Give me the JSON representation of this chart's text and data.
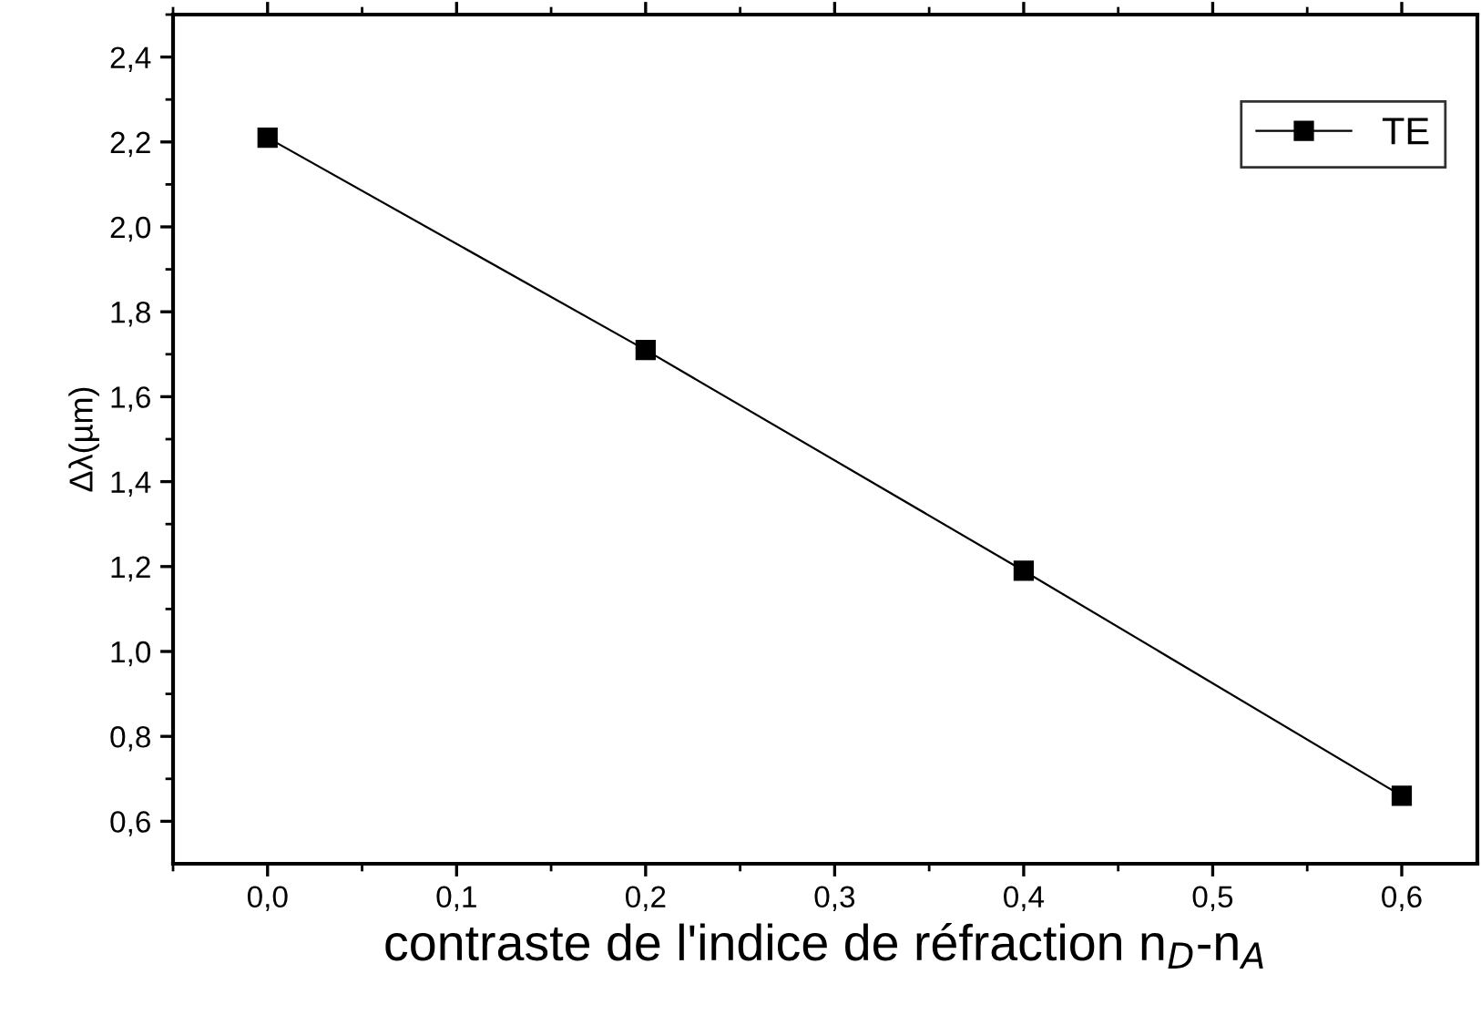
{
  "chart_data": {
    "type": "line",
    "xlabel": "contraste de l'indice de réfraction n$_{D}$-n$_{A}$",
    "ylabel": "Δλ(µm)",
    "x": [
      0.0,
      0.2,
      0.4,
      0.6
    ],
    "series": [
      {
        "name": "TE",
        "color": "#000000",
        "values": [
          2.21,
          1.71,
          1.19,
          0.66
        ]
      }
    ],
    "xlim": [
      -0.05,
      0.64
    ],
    "ylim": [
      0.5,
      2.5
    ],
    "xticks": [
      {
        "value": 0.0,
        "label": "0,0"
      },
      {
        "value": 0.1,
        "label": "0,1"
      },
      {
        "value": 0.2,
        "label": "0,2"
      },
      {
        "value": 0.3,
        "label": "0,3"
      },
      {
        "value": 0.4,
        "label": "0,4"
      },
      {
        "value": 0.5,
        "label": "0,5"
      },
      {
        "value": 0.6,
        "label": "0,6"
      }
    ],
    "yticks": [
      {
        "value": 0.6,
        "label": "0,6"
      },
      {
        "value": 0.8,
        "label": "0,8"
      },
      {
        "value": 1.0,
        "label": "1,0"
      },
      {
        "value": 1.2,
        "label": "1,2"
      },
      {
        "value": 1.4,
        "label": "1,4"
      },
      {
        "value": 1.6,
        "label": "1,6"
      },
      {
        "value": 1.8,
        "label": "1,8"
      },
      {
        "value": 2.0,
        "label": "2,0"
      },
      {
        "value": 2.2,
        "label": "2,2"
      },
      {
        "value": 2.4,
        "label": "2,4"
      }
    ],
    "marker": "square",
    "line_style": "solid",
    "legend": "top right",
    "grid": false
  }
}
